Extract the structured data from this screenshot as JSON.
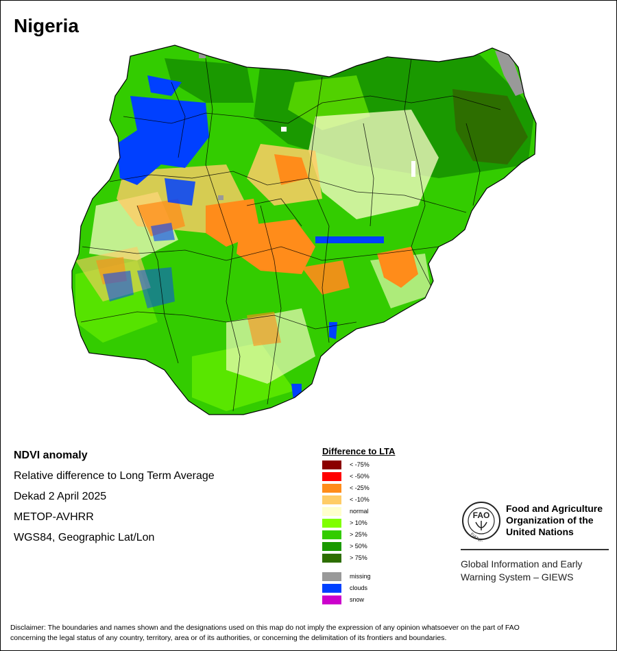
{
  "title": "Nigeria",
  "map_info": {
    "line1": "NDVI anomaly",
    "line2": "Relative difference to Long Term Average",
    "line3": "Dekad 2 April 2025",
    "line4": "METOP-AVHRR",
    "line5": "WGS84, Geographic Lat/Lon"
  },
  "legend": {
    "title": "Difference to LTA",
    "classes": [
      {
        "label": "< -75%",
        "color": "#8b0000"
      },
      {
        "label": "< -50%",
        "color": "#ff0000"
      },
      {
        "label": "< -25%",
        "color": "#ff8c1a"
      },
      {
        "label": "< -10%",
        "color": "#ffcc66"
      },
      {
        "label": "normal",
        "color": "#ffffcc"
      },
      {
        "label": "> 10%",
        "color": "#80ff00"
      },
      {
        "label": "> 25%",
        "color": "#33cc00"
      },
      {
        "label": "> 50%",
        "color": "#1a9900"
      },
      {
        "label": "> 75%",
        "color": "#2d6e00"
      }
    ],
    "special": [
      {
        "label": "missing",
        "color": "#999999"
      },
      {
        "label": "clouds",
        "color": "#0040ff"
      },
      {
        "label": "snow",
        "color": "#cc00cc"
      }
    ]
  },
  "fao": {
    "name_line1": "Food and Agriculture",
    "name_line2": "Organization of the",
    "name_line3": "United Nations",
    "emblem_text": "FIAT PANIS",
    "giews_line1": "Global Information and Early",
    "giews_line2": "Warning System – GIEWS"
  },
  "disclaimer_line1": "Disclaimer: The boundaries and names shown and the designations used on this map do not imply the expression of any opinion whatsoever on the part of FAO",
  "disclaimer_line2": "concerning the legal status of any country, territory, area or of its authorities, or concerning the delimitation of its frontiers and boundaries."
}
